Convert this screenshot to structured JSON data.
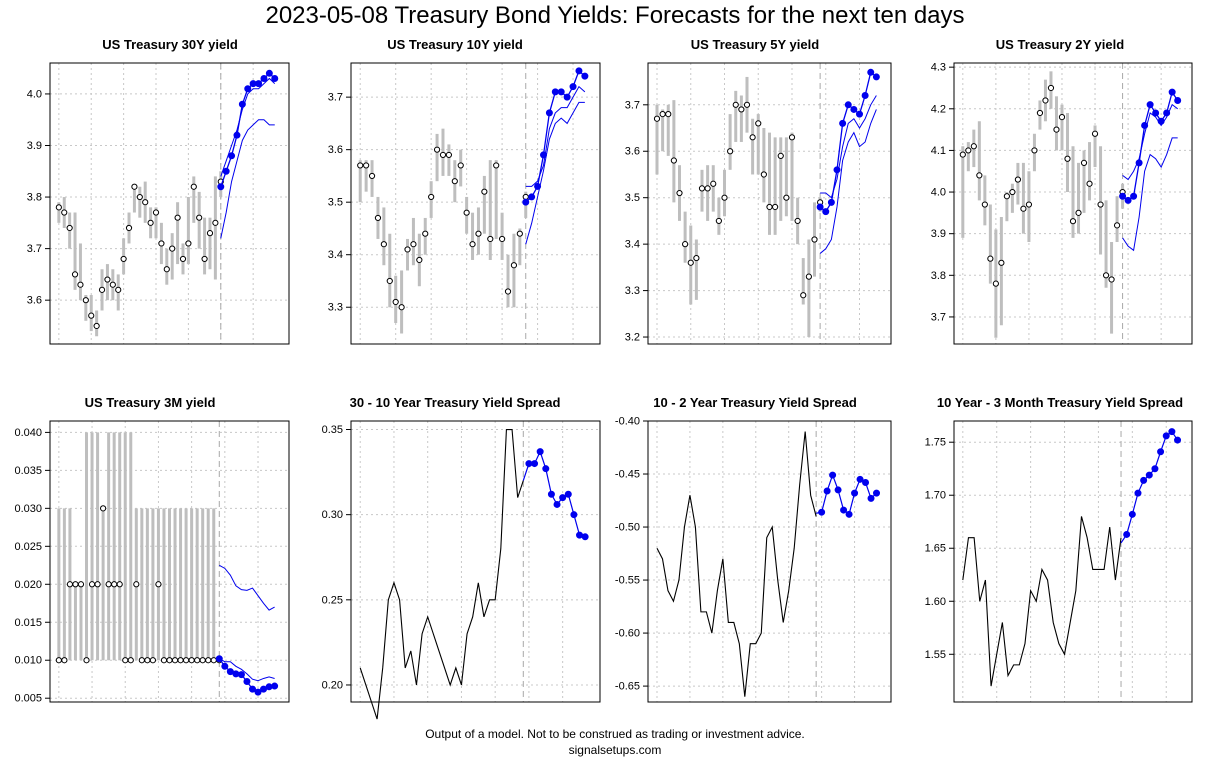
{
  "title": "2023-05-08 Treasury Bond Yields: Forecasts for the next ten days",
  "footer": {
    "disclaimer": "Output of a model. Not to be construed as trading or investment advice.",
    "site": "signalsetups.com"
  },
  "colors": {
    "history": "#000000",
    "range_bar": "#bebebe",
    "forecast": "#0000ee",
    "grid": "#c8c8c8",
    "divider": "#a8a8a8"
  },
  "chart_data": [
    {
      "id": "us30y",
      "type": "range_forecast",
      "title": "US Treasury 30Y yield",
      "ylim": [
        3.515,
        4.06
      ],
      "yticks": [
        3.6,
        3.7,
        3.8,
        3.9,
        4.0
      ],
      "ytick_labels": [
        "3.6",
        "3.7",
        "3.8",
        "3.9",
        "4.0"
      ],
      "history": {
        "close": [
          3.78,
          3.77,
          3.74,
          3.65,
          3.63,
          3.6,
          3.57,
          3.55,
          3.62,
          3.64,
          3.63,
          3.62,
          3.68,
          3.74,
          3.82,
          3.8,
          3.79,
          3.75,
          3.77,
          3.71,
          3.66,
          3.7,
          3.76,
          3.68,
          3.71,
          3.82,
          3.76,
          3.68,
          3.73,
          3.75,
          3.83
        ],
        "low": [
          3.75,
          3.74,
          3.7,
          3.62,
          3.6,
          3.56,
          3.54,
          3.53,
          3.58,
          3.6,
          3.6,
          3.58,
          3.65,
          3.71,
          3.77,
          3.76,
          3.75,
          3.72,
          3.72,
          3.67,
          3.63,
          3.64,
          3.67,
          3.65,
          3.67,
          3.75,
          3.7,
          3.65,
          3.66,
          3.64,
          3.8
        ],
        "high": [
          3.79,
          3.8,
          3.77,
          3.77,
          3.71,
          3.61,
          3.61,
          3.58,
          3.66,
          3.67,
          3.66,
          3.65,
          3.72,
          3.77,
          3.82,
          3.82,
          3.83,
          3.78,
          3.78,
          3.75,
          3.7,
          3.73,
          3.79,
          3.71,
          3.8,
          3.84,
          3.81,
          3.76,
          3.76,
          3.84,
          3.85
        ]
      },
      "forecast": {
        "points": [
          3.82,
          3.85,
          3.88,
          3.92,
          3.98,
          4.01,
          4.02,
          4.02,
          4.03,
          4.04,
          4.03
        ],
        "upper": [
          3.84,
          3.87,
          3.9,
          3.93,
          3.97,
          4.0,
          4.01,
          4.01,
          4.02,
          4.03,
          4.02
        ],
        "lower": [
          3.72,
          3.77,
          3.83,
          3.87,
          3.91,
          3.93,
          3.94,
          3.95,
          3.95,
          3.94,
          3.94
        ]
      }
    },
    {
      "id": "us10y",
      "type": "range_forecast",
      "title": "US Treasury 10Y yield",
      "ylim": [
        3.23,
        3.765
      ],
      "yticks": [
        3.3,
        3.4,
        3.5,
        3.6,
        3.7
      ],
      "ytick_labels": [
        "3.3",
        "3.4",
        "3.5",
        "3.6",
        "3.7"
      ],
      "history": {
        "close": [
          3.57,
          3.57,
          3.55,
          3.47,
          3.42,
          3.35,
          3.31,
          3.3,
          3.41,
          3.42,
          3.39,
          3.44,
          3.51,
          3.6,
          3.59,
          3.59,
          3.54,
          3.57,
          3.48,
          3.42,
          3.44,
          3.52,
          3.43,
          3.57,
          3.43,
          3.33,
          3.38,
          3.44,
          3.51
        ],
        "low": [
          3.5,
          3.52,
          3.51,
          3.43,
          3.38,
          3.3,
          3.27,
          3.25,
          3.37,
          3.38,
          3.34,
          3.4,
          3.47,
          3.54,
          3.55,
          3.55,
          3.5,
          3.53,
          3.44,
          3.39,
          3.4,
          3.44,
          3.39,
          3.43,
          3.39,
          3.3,
          3.3,
          3.38,
          3.47
        ],
        "high": [
          3.58,
          3.58,
          3.58,
          3.51,
          3.49,
          3.44,
          3.36,
          3.37,
          3.43,
          3.47,
          3.44,
          3.47,
          3.54,
          3.63,
          3.64,
          3.61,
          3.58,
          3.6,
          3.51,
          3.48,
          3.49,
          3.55,
          3.58,
          3.58,
          3.48,
          3.4,
          3.44,
          3.45,
          3.52
        ]
      },
      "forecast": {
        "points": [
          3.5,
          3.51,
          3.53,
          3.59,
          3.67,
          3.71,
          3.71,
          3.7,
          3.72,
          3.75,
          3.74
        ],
        "upper": [
          3.53,
          3.53,
          3.54,
          3.57,
          3.64,
          3.67,
          3.68,
          3.68,
          3.7,
          3.72,
          3.71
        ],
        "lower": [
          3.42,
          3.46,
          3.51,
          3.56,
          3.62,
          3.65,
          3.66,
          3.65,
          3.67,
          3.69,
          3.69
        ]
      }
    },
    {
      "id": "us5y",
      "type": "range_forecast",
      "title": "US Treasury 5Y yield",
      "ylim": [
        3.185,
        3.79
      ],
      "yticks": [
        3.2,
        3.3,
        3.4,
        3.5,
        3.6,
        3.7
      ],
      "ytick_labels": [
        "3.2",
        "3.3",
        "3.4",
        "3.5",
        "3.6",
        "3.7"
      ],
      "history": {
        "close": [
          3.67,
          3.68,
          3.68,
          3.58,
          3.51,
          3.4,
          3.36,
          3.37,
          3.52,
          3.52,
          3.53,
          3.45,
          3.5,
          3.6,
          3.7,
          3.69,
          3.7,
          3.63,
          3.66,
          3.55,
          3.48,
          3.48,
          3.59,
          3.5,
          3.63,
          3.45,
          3.29,
          3.33,
          3.41,
          3.49
        ],
        "low": [
          3.55,
          3.6,
          3.59,
          3.49,
          3.45,
          3.36,
          3.27,
          3.28,
          3.47,
          3.45,
          3.47,
          3.42,
          3.46,
          3.56,
          3.62,
          3.62,
          3.64,
          3.55,
          3.55,
          3.49,
          3.42,
          3.42,
          3.45,
          3.46,
          3.45,
          3.4,
          3.27,
          3.2,
          3.33,
          3.47
        ],
        "high": [
          3.7,
          3.69,
          3.7,
          3.71,
          3.57,
          3.47,
          3.44,
          3.41,
          3.56,
          3.57,
          3.57,
          3.5,
          3.56,
          3.68,
          3.73,
          3.72,
          3.76,
          3.67,
          3.68,
          3.65,
          3.64,
          3.63,
          3.63,
          3.63,
          3.64,
          3.5,
          3.37,
          3.41,
          3.49,
          3.5
        ]
      },
      "forecast": {
        "points": [
          3.48,
          3.47,
          3.49,
          3.56,
          3.66,
          3.7,
          3.69,
          3.68,
          3.72,
          3.77,
          3.76
        ],
        "upper": [
          3.51,
          3.51,
          3.5,
          3.54,
          3.61,
          3.66,
          3.67,
          3.65,
          3.67,
          3.7,
          3.72
        ],
        "lower": [
          3.38,
          3.39,
          3.41,
          3.48,
          3.58,
          3.62,
          3.64,
          3.61,
          3.62,
          3.66,
          3.69
        ]
      }
    },
    {
      "id": "us2y",
      "type": "range_forecast",
      "title": "US Treasury 2Y yield",
      "ylim": [
        3.635,
        4.31
      ],
      "yticks": [
        3.7,
        3.8,
        3.9,
        4.0,
        4.1,
        4.2,
        4.3
      ],
      "ytick_labels": [
        "3.7",
        "3.8",
        "3.9",
        "4.0",
        "4.1",
        "4.2",
        "4.3"
      ],
      "history": {
        "close": [
          4.09,
          4.1,
          4.11,
          4.04,
          3.97,
          3.84,
          3.78,
          3.83,
          3.99,
          4.0,
          4.03,
          3.96,
          3.97,
          4.1,
          4.19,
          4.22,
          4.25,
          4.15,
          4.18,
          4.08,
          3.93,
          3.95,
          4.07,
          4.02,
          4.14,
          3.97,
          3.8,
          3.79,
          3.92,
          4.0
        ],
        "low": [
          3.89,
          4.05,
          4.06,
          3.98,
          3.92,
          3.78,
          3.65,
          3.68,
          3.93,
          3.95,
          3.97,
          3.9,
          3.88,
          4.05,
          4.15,
          4.17,
          4.2,
          4.1,
          4.1,
          4.0,
          3.89,
          3.9,
          3.95,
          3.98,
          4.06,
          3.85,
          3.77,
          3.66,
          3.88,
          3.96
        ],
        "high": [
          4.11,
          4.12,
          4.15,
          4.17,
          4.04,
          3.97,
          3.91,
          3.94,
          4.0,
          4.02,
          4.07,
          4.07,
          4.05,
          4.14,
          4.22,
          4.27,
          4.29,
          4.23,
          4.21,
          4.19,
          4.11,
          4.07,
          4.1,
          4.12,
          4.16,
          4.11,
          3.98,
          3.88,
          3.99,
          4.02
        ]
      },
      "forecast": {
        "points": [
          3.99,
          3.98,
          3.99,
          4.07,
          4.16,
          4.21,
          4.19,
          4.17,
          4.19,
          4.24,
          4.22
        ],
        "upper": [
          4.04,
          4.03,
          4.05,
          4.08,
          4.14,
          4.19,
          4.18,
          4.16,
          4.18,
          4.21,
          4.2
        ],
        "lower": [
          3.89,
          3.87,
          3.86,
          3.94,
          4.05,
          4.09,
          4.08,
          4.06,
          4.09,
          4.13,
          4.13
        ]
      }
    },
    {
      "id": "us3m",
      "type": "range_forecast",
      "title": "US Treasury 3M yield",
      "ylim": [
        0.0045,
        0.0415
      ],
      "yticks": [
        0.005,
        0.01,
        0.015,
        0.02,
        0.025,
        0.03,
        0.035,
        0.04
      ],
      "ytick_labels": [
        "0.005",
        "0.010",
        "0.015",
        "0.020",
        "0.025",
        "0.030",
        "0.035",
        "0.040"
      ],
      "history": {
        "close": [
          0.01,
          0.01,
          0.02,
          0.02,
          0.02,
          0.01,
          0.02,
          0.02,
          0.03,
          0.02,
          0.02,
          0.02,
          0.01,
          0.01,
          0.02,
          0.01,
          0.01,
          0.01,
          0.02,
          0.01,
          0.01,
          0.01,
          0.01,
          0.01,
          0.01,
          0.01,
          0.01,
          0.01,
          0.01,
          0.01
        ],
        "low": [
          0.01,
          0.01,
          0.01,
          0.01,
          0.01,
          0.01,
          0.01,
          0.01,
          0.01,
          0.01,
          0.01,
          0.01,
          0.01,
          0.01,
          0.01,
          0.01,
          0.01,
          0.01,
          0.01,
          0.01,
          0.01,
          0.01,
          0.01,
          0.01,
          0.01,
          0.01,
          0.01,
          0.01,
          0.01,
          0.01
        ],
        "high": [
          0.03,
          0.03,
          0.03,
          0.02,
          0.02,
          0.04,
          0.04,
          0.04,
          0.03,
          0.04,
          0.04,
          0.04,
          0.04,
          0.04,
          0.03,
          0.03,
          0.03,
          0.03,
          0.03,
          0.03,
          0.03,
          0.03,
          0.03,
          0.03,
          0.03,
          0.03,
          0.03,
          0.03,
          0.03,
          0.01
        ]
      },
      "forecast": {
        "points": [
          0.0102,
          0.0092,
          0.0085,
          0.0082,
          0.0081,
          0.0072,
          0.0062,
          0.0058,
          0.0062,
          0.0065,
          0.0066
        ],
        "upper": [
          0.0225,
          0.0221,
          0.0212,
          0.0198,
          0.0193,
          0.0192,
          0.0195,
          0.0185,
          0.0175,
          0.0166,
          0.017
        ],
        "lower": [
          0.0102,
          0.0098,
          0.0098,
          0.0092,
          0.0088,
          0.0082,
          0.0075,
          0.0073,
          0.0076,
          0.0078,
          0.0076
        ]
      }
    },
    {
      "id": "spread-30-10",
      "type": "line_forecast",
      "title": "30 - 10 Year Treasury Yield Spread",
      "ylim": [
        0.19,
        0.355
      ],
      "yticks": [
        0.2,
        0.25,
        0.3,
        0.35
      ],
      "ytick_labels": [
        "0.20",
        "0.25",
        "0.30",
        "0.35"
      ],
      "history": [
        0.21,
        0.2,
        0.19,
        0.18,
        0.21,
        0.25,
        0.26,
        0.25,
        0.21,
        0.22,
        0.2,
        0.23,
        0.24,
        0.23,
        0.22,
        0.21,
        0.2,
        0.21,
        0.2,
        0.23,
        0.24,
        0.26,
        0.24,
        0.25,
        0.25,
        0.28,
        0.35,
        0.35,
        0.31,
        0.32
      ],
      "forecast": [
        0.32,
        0.33,
        0.33,
        0.337,
        0.327,
        0.312,
        0.306,
        0.31,
        0.312,
        0.3,
        0.288,
        0.287
      ]
    },
    {
      "id": "spread-10-2",
      "type": "line_forecast",
      "title": "10 - 2 Year Treasury Yield Spread",
      "ylim": [
        -0.665,
        -0.4
      ],
      "yticks": [
        -0.65,
        -0.6,
        -0.55,
        -0.5,
        -0.45,
        -0.4
      ],
      "ytick_labels": [
        "-0.65",
        "-0.60",
        "-0.55",
        "-0.50",
        "-0.45",
        "-0.40"
      ],
      "history": [
        -0.52,
        -0.53,
        -0.56,
        -0.57,
        -0.55,
        -0.5,
        -0.47,
        -0.5,
        -0.58,
        -0.58,
        -0.6,
        -0.56,
        -0.53,
        -0.59,
        -0.59,
        -0.61,
        -0.66,
        -0.61,
        -0.61,
        -0.6,
        -0.51,
        -0.5,
        -0.55,
        -0.59,
        -0.56,
        -0.52,
        -0.46,
        -0.41,
        -0.47,
        -0.49
      ],
      "forecast": [
        -0.487,
        -0.486,
        -0.466,
        -0.451,
        -0.465,
        -0.484,
        -0.488,
        -0.468,
        -0.455,
        -0.458,
        -0.473,
        -0.468
      ]
    },
    {
      "id": "spread-10-3m",
      "type": "line_forecast",
      "title": "10 Year - 3 Month Treasury Yield Spread",
      "ylim": [
        1.505,
        1.77
      ],
      "yticks": [
        1.55,
        1.6,
        1.65,
        1.7,
        1.75
      ],
      "ytick_labels": [
        "1.55",
        "1.60",
        "1.65",
        "1.70",
        "1.75"
      ],
      "history": [
        1.62,
        1.66,
        1.66,
        1.6,
        1.62,
        1.52,
        1.55,
        1.58,
        1.53,
        1.54,
        1.54,
        1.56,
        1.61,
        1.6,
        1.63,
        1.62,
        1.58,
        1.56,
        1.55,
        1.58,
        1.61,
        1.68,
        1.66,
        1.63,
        1.63,
        1.63,
        1.67,
        1.62,
        1.66
      ],
      "forecast": [
        1.655,
        1.663,
        1.682,
        1.702,
        1.714,
        1.719,
        1.725,
        1.741,
        1.756,
        1.76,
        1.752
      ]
    }
  ]
}
